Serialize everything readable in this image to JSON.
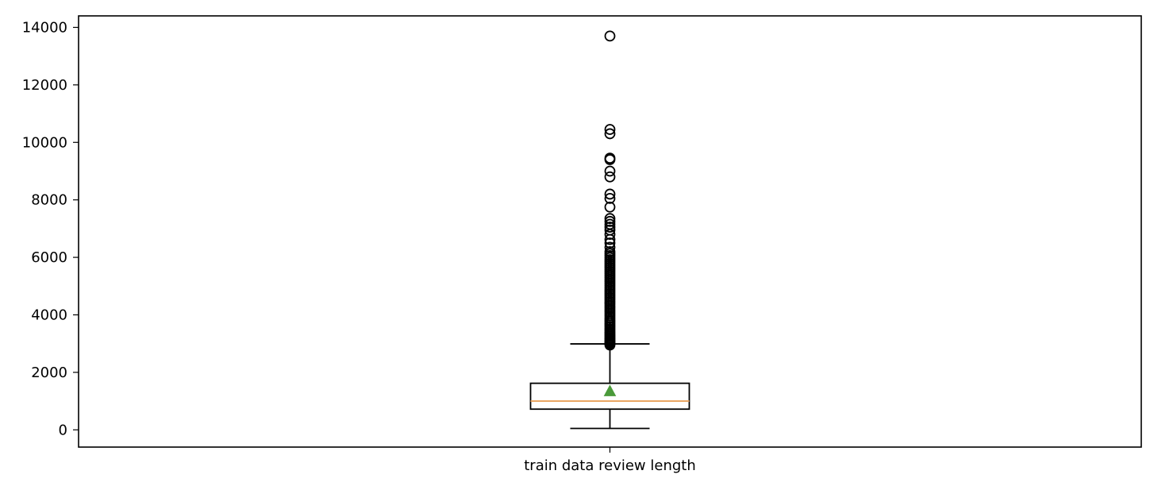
{
  "chart_data": {
    "type": "boxplot",
    "title": "",
    "xlabel": "",
    "ylabel": "",
    "categories": [
      "train data review length"
    ],
    "ylim": [
      -600,
      14400
    ],
    "y_ticks": [
      0,
      2000,
      4000,
      6000,
      8000,
      10000,
      12000,
      14000
    ],
    "grid": false,
    "showmeans": true,
    "boxes": [
      {
        "name": "train data review length",
        "whislo": 50,
        "q1": 720,
        "median": 1000,
        "q3": 1620,
        "whishi": 2990,
        "mean": 1350,
        "fliers": [
          2950,
          2990,
          3030,
          3070,
          3110,
          3160,
          3200,
          3250,
          3300,
          3350,
          3400,
          3460,
          3520,
          3580,
          3640,
          3700,
          3760,
          3820,
          3890,
          3960,
          4030,
          4100,
          4170,
          4240,
          4310,
          4380,
          4450,
          4520,
          4590,
          4660,
          4730,
          4800,
          4870,
          4940,
          5010,
          5080,
          5150,
          5220,
          5290,
          5360,
          5430,
          5500,
          5570,
          5640,
          5710,
          5780,
          5850,
          5920,
          5990,
          6060,
          6130,
          6200,
          6350,
          6500,
          6620,
          6800,
          6950,
          7050,
          7150,
          7250,
          7350,
          7750,
          8050,
          8200,
          8800,
          9000,
          9400,
          9450,
          10300,
          10450,
          13700
        ]
      }
    ],
    "colors": {
      "box": "#000000",
      "median": "#e8a15a",
      "mean_marker": "#4a9a3a",
      "axes": "#000000",
      "background": "#ffffff"
    }
  }
}
